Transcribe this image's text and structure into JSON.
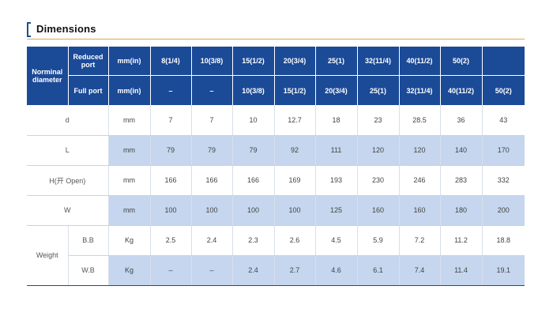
{
  "title": "Dimensions",
  "header": {
    "nominal_diameter": "Norminal diameter",
    "reduced_port": "Reduced port",
    "full_port": "Full port",
    "unit": "mm(in)",
    "reduced_sizes": [
      "8(1/4)",
      "10(3/8)",
      "15(1/2)",
      "20(3/4)",
      "25(1)",
      "32(11/4)",
      "40(11/2)",
      "50(2)",
      ""
    ],
    "full_sizes": [
      "–",
      "–",
      "10(3/8)",
      "15(1/2)",
      "20(3/4)",
      "25(1)",
      "32(11/4)",
      "40(11/2)",
      "50(2)"
    ]
  },
  "rows": {
    "d": {
      "label": "d",
      "unit": "mm",
      "values": [
        "7",
        "7",
        "10",
        "12.7",
        "18",
        "23",
        "28.5",
        "36",
        "43"
      ]
    },
    "L": {
      "label": "L",
      "unit": "mm",
      "values": [
        "79",
        "79",
        "79",
        "92",
        "111",
        "120",
        "120",
        "140",
        "170"
      ]
    },
    "H": {
      "label": "H(开 Open)",
      "unit": "mm",
      "values": [
        "166",
        "166",
        "166",
        "169",
        "193",
        "230",
        "246",
        "283",
        "332"
      ]
    },
    "W": {
      "label": "W",
      "unit": "mm",
      "values": [
        "100",
        "100",
        "100",
        "100",
        "125",
        "160",
        "160",
        "180",
        "200"
      ]
    },
    "weight": {
      "label": "Weight",
      "bb": {
        "label": "B.B",
        "unit": "Kg",
        "values": [
          "2.5",
          "2.4",
          "2.3",
          "2.6",
          "4.5",
          "5.9",
          "7.2",
          "11.2",
          "18.8"
        ]
      },
      "wb": {
        "label": "W.B",
        "unit": "Kg",
        "values": [
          "–",
          "–",
          "2.4",
          "2.7",
          "4.6",
          "6.1",
          "7.4",
          "11.4",
          "19.1"
        ]
      }
    }
  },
  "colors": {
    "header_bg": "#1b4a97",
    "shade": "#c5d6ee",
    "accent_line": "#e0a84a"
  }
}
